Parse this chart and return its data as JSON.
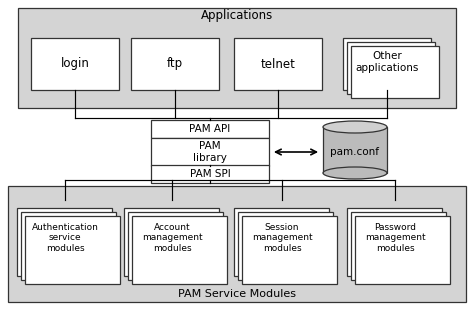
{
  "white": "#ffffff",
  "black": "#000000",
  "gray_bg": "#d4d4d4",
  "box_edge": "#555555",
  "line_color": "#000000",
  "apps_label": "Applications",
  "app_boxes": [
    "login",
    "ftp",
    "telnet",
    "Other\napplications"
  ],
  "pam_api_label": "PAM API",
  "pam_library_label": "PAM\nlibrary",
  "pam_spi_label": "PAM SPI",
  "pam_conf_label": "pam.conf",
  "service_modules_label": "PAM Service Modules",
  "service_boxes": [
    "Authentication\nservice\nmodules",
    "Account\nmanagement\nmodules",
    "Session\nmanagement\nmodules",
    "Password\nmanagement\nmodules"
  ],
  "fig_w": 4.74,
  "fig_h": 3.12,
  "dpi": 100
}
